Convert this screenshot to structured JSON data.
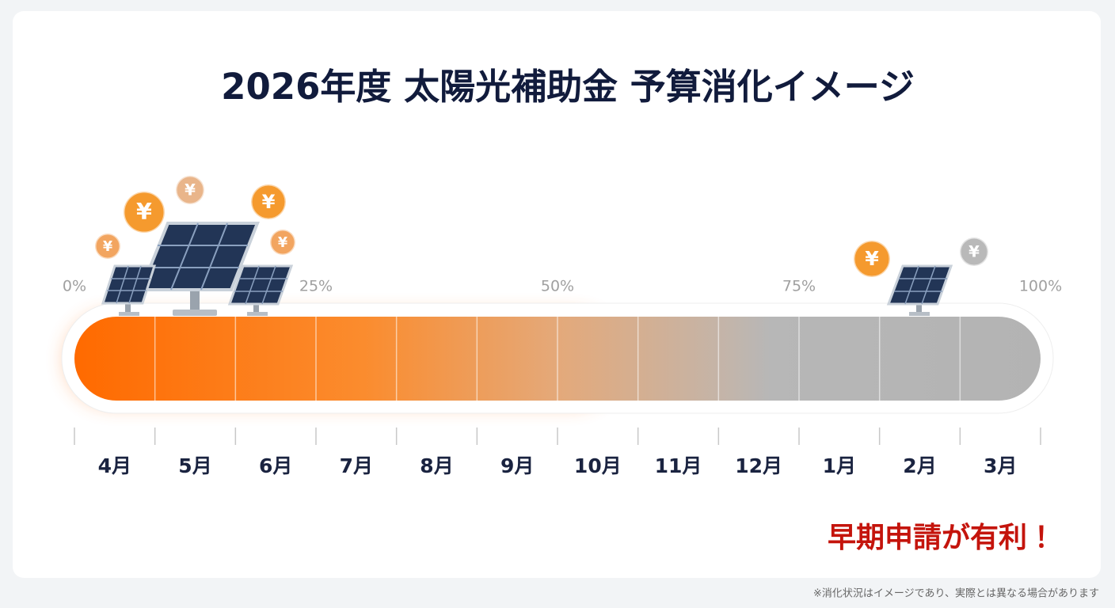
{
  "header": {
    "title": "2026年度 太陽光補助金 予算消化イメージ"
  },
  "scale": {
    "percent_labels": [
      "0%",
      "25%",
      "50%",
      "75%",
      "100%"
    ]
  },
  "timeline": {
    "months": [
      "4月",
      "5月",
      "6月",
      "7月",
      "8月",
      "9月",
      "10月",
      "11月",
      "12月",
      "1月",
      "2月",
      "3月"
    ]
  },
  "coin_symbol": "¥",
  "callout": "早期申請が有利！",
  "footnote": "※消化状況はイメージであり、実際とは異なる場合があります"
}
